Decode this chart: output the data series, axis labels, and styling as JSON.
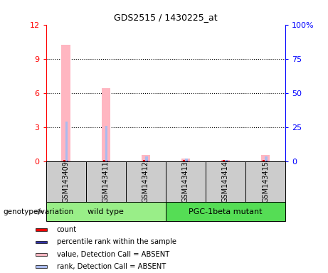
{
  "title": "GDS2515 / 1430225_at",
  "samples": [
    "GSM143409",
    "GSM143411",
    "GSM143412",
    "GSM143413",
    "GSM143414",
    "GSM143415"
  ],
  "pink_values": [
    10.2,
    6.4,
    0.55,
    0.25,
    0.12,
    0.55
  ],
  "blue_values": [
    3.5,
    3.1,
    0.38,
    0.22,
    0.1,
    0.38
  ],
  "red_values": [
    0.08,
    0.08,
    0.08,
    0.08,
    0.08,
    0.08
  ],
  "darkblue_values": [
    0.06,
    0.06,
    0.06,
    0.06,
    0.06,
    0.06
  ],
  "ylim_left": [
    0,
    12
  ],
  "ylim_right": [
    0,
    100
  ],
  "yticks_left": [
    0,
    3,
    6,
    9,
    12
  ],
  "ytick_labels_left": [
    "0",
    "3",
    "6",
    "9",
    "12"
  ],
  "yticks_right": [
    0,
    25,
    50,
    75,
    100
  ],
  "ytick_labels_right": [
    "0",
    "25",
    "50",
    "75",
    "100%"
  ],
  "bar_color_pink": "#FFB6C1",
  "bar_color_blue": "#AABBEE",
  "bar_color_red": "#EE0000",
  "bar_color_darkblue": "#3333AA",
  "bg_color": "#CCCCCC",
  "group_colors": [
    "#99EE88",
    "#55DD55"
  ],
  "legend_items": [
    {
      "label": "count",
      "color": "#EE0000"
    },
    {
      "label": "percentile rank within the sample",
      "color": "#3333AA"
    },
    {
      "label": "value, Detection Call = ABSENT",
      "color": "#FFB6C1"
    },
    {
      "label": "rank, Detection Call = ABSENT",
      "color": "#AABBEE"
    }
  ],
  "wild_type_samples": [
    0,
    1,
    2
  ],
  "pgc_samples": [
    3,
    4,
    5
  ],
  "wild_type_label": "wild type",
  "pgc_label": "PGC-1beta mutant",
  "genotype_label": "genotype/variation"
}
